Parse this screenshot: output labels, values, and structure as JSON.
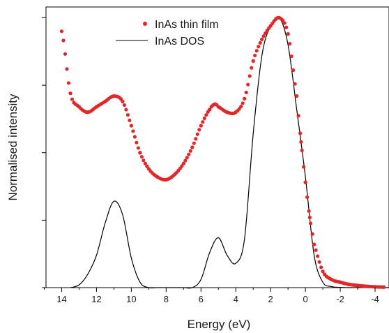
{
  "chart_data": {
    "type": "scatter",
    "xlabel": "Energy (eV)",
    "ylabel": "Normalised intensity",
    "xlim": [
      14.9,
      -4.8
    ],
    "ylim": [
      0,
      1.04
    ],
    "x_reversed": true,
    "x_ticks": [
      14,
      12,
      10,
      8,
      6,
      4,
      2,
      0,
      -2,
      -4
    ],
    "x_tick_labels": [
      "14",
      "12",
      "10",
      "8",
      "6",
      "4",
      "2",
      "0",
      "-2",
      "-4"
    ],
    "y_ticks": [
      0,
      0.25,
      0.5,
      0.75,
      1.0
    ],
    "legend_position": "top-center",
    "grid": false,
    "series": [
      {
        "name": "InAs thin film",
        "style": "scatter",
        "color": "#e0282a",
        "x": [
          14,
          13.5,
          13,
          12.5,
          12,
          11.5,
          11,
          10.5,
          10,
          9.5,
          9,
          8.5,
          8,
          7.5,
          7,
          6.5,
          6,
          5.5,
          5.2,
          5,
          4.5,
          4,
          3.5,
          3,
          2.5,
          2,
          1.5,
          1,
          0.5,
          0.25,
          0,
          -0.25,
          -0.5,
          -1,
          -1.5,
          -2,
          -2.5,
          -3,
          -3.5,
          -4,
          -4.5
        ],
        "y": [
          0.95,
          0.72,
          0.67,
          0.65,
          0.67,
          0.69,
          0.71,
          0.69,
          0.6,
          0.5,
          0.44,
          0.41,
          0.4,
          0.42,
          0.46,
          0.52,
          0.6,
          0.66,
          0.68,
          0.67,
          0.65,
          0.65,
          0.7,
          0.84,
          0.92,
          0.97,
          1.0,
          0.94,
          0.71,
          0.54,
          0.39,
          0.26,
          0.16,
          0.06,
          0.03,
          0.02,
          0.012,
          0.008,
          0.005,
          0.003,
          0.002
        ]
      },
      {
        "name": "InAs DOS",
        "style": "line",
        "color": "#000000",
        "x": [
          13.5,
          13,
          12.5,
          12,
          11.5,
          11,
          10.5,
          10,
          9.5,
          9,
          8.5,
          8,
          7.5,
          7,
          6.5,
          6,
          5.5,
          5,
          4.5,
          4,
          3.5,
          3,
          2.5,
          2,
          1.5,
          1,
          0.5,
          0,
          -0.5,
          -1,
          -1.5,
          -2,
          -3,
          -4,
          -4.8
        ],
        "y": [
          0.0,
          0.01,
          0.05,
          0.12,
          0.24,
          0.32,
          0.27,
          0.11,
          0.02,
          0.0,
          0.0,
          0.0,
          0.0,
          0.0,
          0.0,
          0.03,
          0.13,
          0.185,
          0.12,
          0.09,
          0.18,
          0.57,
          0.86,
          0.97,
          1.0,
          0.9,
          0.66,
          0.41,
          0.12,
          0.02,
          0.004,
          0.001,
          0.0,
          0.0,
          0.0
        ]
      }
    ]
  }
}
